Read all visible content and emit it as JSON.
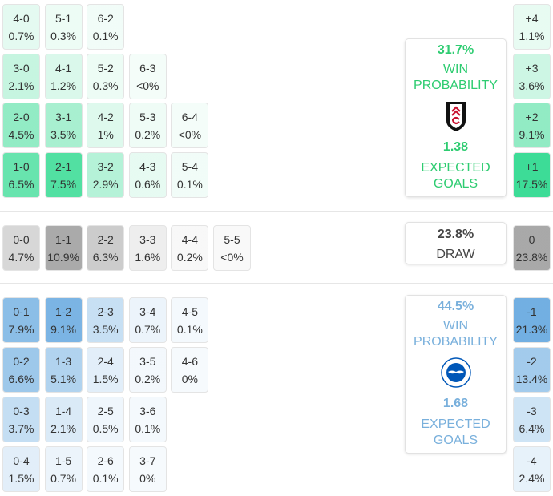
{
  "colors": {
    "home": "#3ddc97",
    "draw": "#9a9a9a",
    "away": "#6aabe0",
    "home_text": "#2ecc71",
    "away_text": "#79b0dc"
  },
  "home_grid": [
    [
      {
        "score": "4-0",
        "pct": "0.7%"
      },
      {
        "score": "5-1",
        "pct": "0.3%"
      },
      {
        "score": "6-2",
        "pct": "0.1%"
      }
    ],
    [
      {
        "score": "3-0",
        "pct": "2.1%"
      },
      {
        "score": "4-1",
        "pct": "1.2%"
      },
      {
        "score": "5-2",
        "pct": "0.3%"
      },
      {
        "score": "6-3",
        "pct": "<0%"
      }
    ],
    [
      {
        "score": "2-0",
        "pct": "4.5%"
      },
      {
        "score": "3-1",
        "pct": "3.5%"
      },
      {
        "score": "4-2",
        "pct": "1%"
      },
      {
        "score": "5-3",
        "pct": "0.2%"
      },
      {
        "score": "6-4",
        "pct": "<0%"
      }
    ],
    [
      {
        "score": "1-0",
        "pct": "6.5%"
      },
      {
        "score": "2-1",
        "pct": "7.5%"
      },
      {
        "score": "3-2",
        "pct": "2.9%"
      },
      {
        "score": "4-3",
        "pct": "0.6%"
      },
      {
        "score": "5-4",
        "pct": "0.1%"
      }
    ]
  ],
  "draw_grid": [
    [
      {
        "score": "0-0",
        "pct": "4.7%"
      },
      {
        "score": "1-1",
        "pct": "10.9%"
      },
      {
        "score": "2-2",
        "pct": "6.3%"
      },
      {
        "score": "3-3",
        "pct": "1.6%"
      },
      {
        "score": "4-4",
        "pct": "0.2%"
      },
      {
        "score": "5-5",
        "pct": "<0%"
      }
    ]
  ],
  "away_grid": [
    [
      {
        "score": "0-1",
        "pct": "7.9%"
      },
      {
        "score": "1-2",
        "pct": "9.1%"
      },
      {
        "score": "2-3",
        "pct": "3.5%"
      },
      {
        "score": "3-4",
        "pct": "0.7%"
      },
      {
        "score": "4-5",
        "pct": "0.1%"
      }
    ],
    [
      {
        "score": "0-2",
        "pct": "6.6%"
      },
      {
        "score": "1-3",
        "pct": "5.1%"
      },
      {
        "score": "2-4",
        "pct": "1.5%"
      },
      {
        "score": "3-5",
        "pct": "0.2%"
      },
      {
        "score": "4-6",
        "pct": "0%"
      }
    ],
    [
      {
        "score": "0-3",
        "pct": "3.7%"
      },
      {
        "score": "1-4",
        "pct": "2.1%"
      },
      {
        "score": "2-5",
        "pct": "0.5%"
      },
      {
        "score": "3-6",
        "pct": "0.1%"
      }
    ],
    [
      {
        "score": "0-4",
        "pct": "1.5%"
      },
      {
        "score": "1-5",
        "pct": "0.7%"
      },
      {
        "score": "2-6",
        "pct": "0.1%"
      },
      {
        "score": "3-7",
        "pct": "0%"
      }
    ]
  ],
  "margins_home": [
    {
      "margin": "+4",
      "pct": "1.1%"
    },
    {
      "margin": "+3",
      "pct": "3.6%"
    },
    {
      "margin": "+2",
      "pct": "9.1%"
    },
    {
      "margin": "+1",
      "pct": "17.5%"
    }
  ],
  "margin_draw": [
    {
      "margin": "0",
      "pct": "23.8%"
    }
  ],
  "margins_away": [
    {
      "margin": "-1",
      "pct": "21.3%"
    },
    {
      "margin": "-2",
      "pct": "13.4%"
    },
    {
      "margin": "-3",
      "pct": "6.4%"
    },
    {
      "margin": "-4",
      "pct": "2.4%"
    }
  ],
  "home_card": {
    "win_pct": "31.7%",
    "win_label1": "WIN",
    "win_label2": "PROBABILITY",
    "xg": "1.38",
    "xg_label1": "EXPECTED",
    "xg_label2": "GOALS",
    "crest": "fulham-crest-icon"
  },
  "draw_card": {
    "pct": "23.8%",
    "label": "DRAW"
  },
  "away_card": {
    "win_pct": "44.5%",
    "win_label1": "WIN",
    "win_label2": "PROBABILITY",
    "xg": "1.68",
    "xg_label1": "EXPECTED",
    "xg_label2": "GOALS",
    "crest": "brighton-crest-icon"
  }
}
